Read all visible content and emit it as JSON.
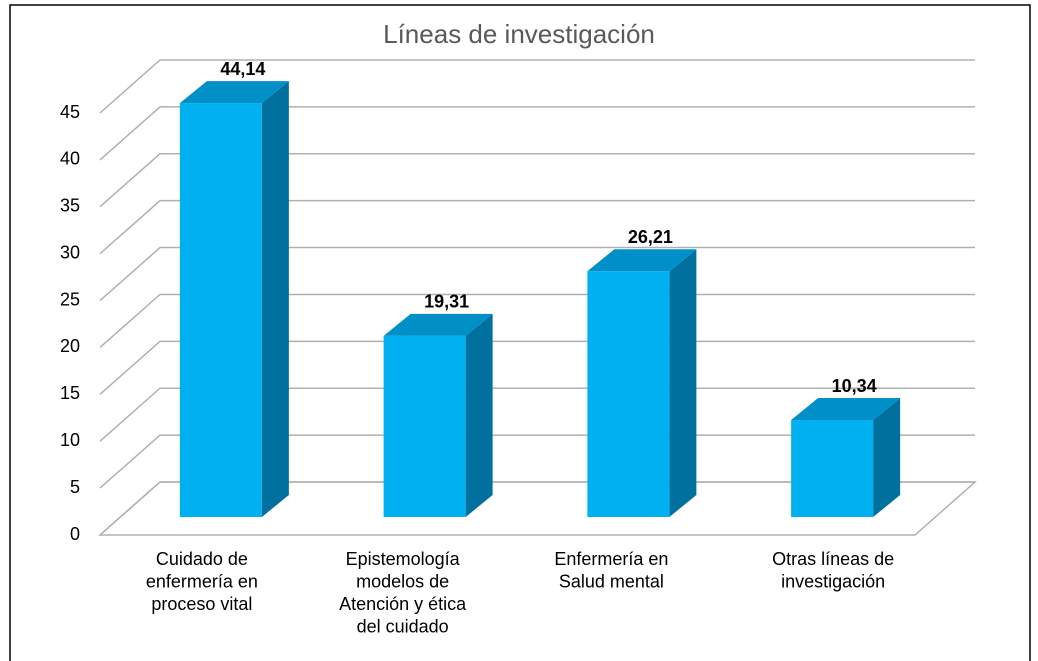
{
  "chart_data": {
    "type": "bar3d",
    "title": "Líneas de investigación",
    "categories": [
      "Cuidado de\nenfermería en\nproceso vital",
      "Epistemología\nmodelos de\nAtención y ética\ndel cuidado",
      "Enfermería en\nSalud mental",
      "Otras líneas de\ninvestigación"
    ],
    "values": [
      44.14,
      19.31,
      26.21,
      10.34
    ],
    "value_labels": [
      "44,14",
      "19,31",
      "26,21",
      "10,34"
    ],
    "color": "#00b0f0",
    "ylim": [
      0,
      45
    ],
    "yticks": [
      0,
      5,
      10,
      15,
      20,
      25,
      30,
      35,
      40,
      45
    ],
    "grid": true
  }
}
